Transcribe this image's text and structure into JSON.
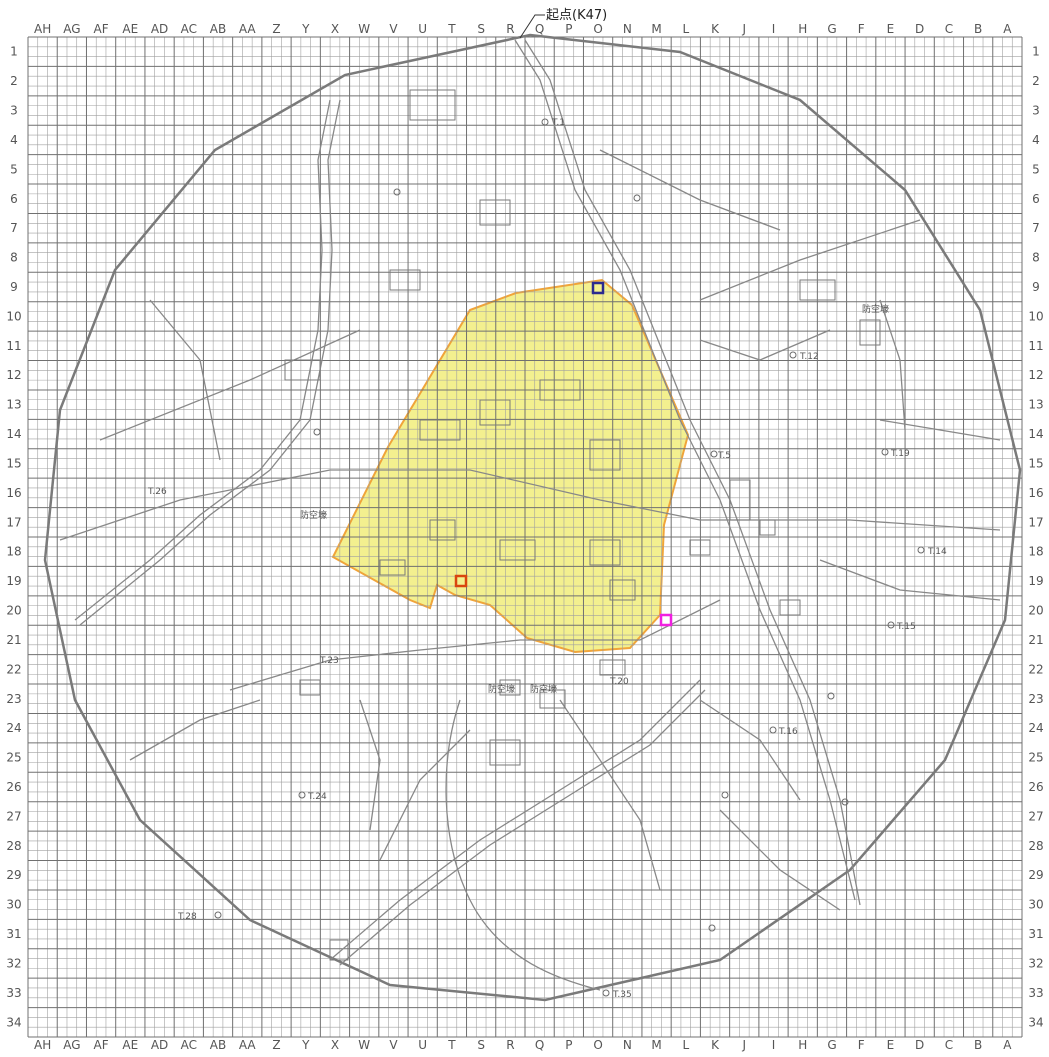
{
  "map": {
    "start_label": "起点(K47)",
    "col_labels": [
      "AH",
      "AG",
      "AF",
      "AE",
      "AD",
      "AC",
      "AB",
      "AA",
      "Z",
      "Y",
      "X",
      "W",
      "V",
      "U",
      "T",
      "S",
      "R",
      "Q",
      "P",
      "O",
      "N",
      "M",
      "L",
      "K",
      "J",
      "I",
      "H",
      "G",
      "F",
      "E",
      "D",
      "C",
      "B",
      "A"
    ],
    "row_labels": [
      "1",
      "2",
      "3",
      "4",
      "5",
      "6",
      "7",
      "8",
      "9",
      "10",
      "11",
      "12",
      "13",
      "14",
      "15",
      "16",
      "17",
      "18",
      "19",
      "20",
      "21",
      "22",
      "23",
      "24",
      "25",
      "26",
      "27",
      "28",
      "29",
      "30",
      "31",
      "32",
      "33",
      "34"
    ],
    "place_labels": {
      "shelter_1": "防空壕",
      "shelter_2": "防空壕",
      "shelter_3": "防空壕",
      "shelter_4": "防空壕",
      "t1": "T.1",
      "t5": "T.5",
      "t12": "T.12",
      "t14": "T.14",
      "t15": "T.15",
      "t16": "T.16",
      "t19": "T.19",
      "t20": "T.20",
      "t23": "T.23",
      "t24": "T.24",
      "t26": "T.26",
      "t28": "T.28",
      "t35": "T.35"
    },
    "colors": {
      "grid": "#8a8a8a",
      "highlight_fill": "#f3f08a",
      "highlight_stroke": "#f0a030",
      "marker_blue": "#2b2a8f",
      "marker_orange": "#d9460f",
      "marker_magenta": "#f020e0",
      "roads": "#888888"
    }
  }
}
